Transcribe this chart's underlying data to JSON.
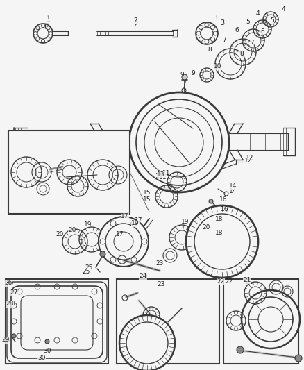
{
  "bg_color": "#f5f5f5",
  "fg_color": "#3a3a3a",
  "label_color": "#222222",
  "fig_w": 4.38,
  "fig_h": 5.33,
  "dpi": 100
}
